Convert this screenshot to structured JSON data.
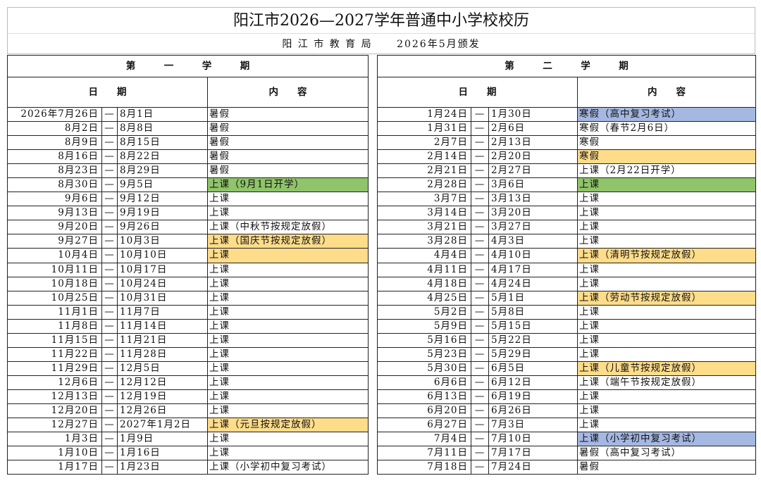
{
  "title": "阳江市2026—2027学年普通中小学校校历",
  "issuer": "阳 江 市 教 育 局",
  "issue_date": "2026年5月颁发",
  "semesters": [
    {
      "heading": "第　　　一　　　学　　　期",
      "date_header": "日　　期",
      "content_header": "内　　容",
      "rows": [
        {
          "start": "2026年7月26日",
          "sep": "—",
          "end": "8月1日",
          "content": "暑假",
          "hl": ""
        },
        {
          "start": "8月2日",
          "sep": "—",
          "end": "8月8日",
          "content": "暑假",
          "hl": ""
        },
        {
          "start": "8月9日",
          "sep": "—",
          "end": "8月15日",
          "content": "暑假",
          "hl": ""
        },
        {
          "start": "8月16日",
          "sep": "—",
          "end": "8月22日",
          "content": "暑假",
          "hl": ""
        },
        {
          "start": "8月23日",
          "sep": "—",
          "end": "8月29日",
          "content": "暑假",
          "hl": ""
        },
        {
          "start": "8月30日",
          "sep": "—",
          "end": "9月5日",
          "content": "上课（9月1日开学）",
          "hl": "green"
        },
        {
          "start": "9月6日",
          "sep": "—",
          "end": "9月12日",
          "content": "上课",
          "hl": ""
        },
        {
          "start": "9月13日",
          "sep": "—",
          "end": "9月19日",
          "content": "上课",
          "hl": ""
        },
        {
          "start": "9月20日",
          "sep": "—",
          "end": "9月26日",
          "content": "上课（中秋节按规定放假）",
          "hl": ""
        },
        {
          "start": "9月27日",
          "sep": "—",
          "end": "10月3日",
          "content": "上课（国庆节按规定放假）",
          "hl": "yellow"
        },
        {
          "start": "10月4日",
          "sep": "—",
          "end": "10月10日",
          "content": "上课",
          "hl": "yellow"
        },
        {
          "start": "10月11日",
          "sep": "—",
          "end": "10月17日",
          "content": "上课",
          "hl": ""
        },
        {
          "start": "10月18日",
          "sep": "—",
          "end": "10月24日",
          "content": "上课",
          "hl": ""
        },
        {
          "start": "10月25日",
          "sep": "—",
          "end": "10月31日",
          "content": "上课",
          "hl": ""
        },
        {
          "start": "11月1日",
          "sep": "—",
          "end": "11月7日",
          "content": "上课",
          "hl": ""
        },
        {
          "start": "11月8日",
          "sep": "—",
          "end": "11月14日",
          "content": "上课",
          "hl": ""
        },
        {
          "start": "11月15日",
          "sep": "—",
          "end": "11月21日",
          "content": "上课",
          "hl": ""
        },
        {
          "start": "11月22日",
          "sep": "—",
          "end": "11月28日",
          "content": "上课",
          "hl": ""
        },
        {
          "start": "11月29日",
          "sep": "—",
          "end": "12月5日",
          "content": "上课",
          "hl": ""
        },
        {
          "start": "12月6日",
          "sep": "—",
          "end": "12月12日",
          "content": "上课",
          "hl": ""
        },
        {
          "start": "12月13日",
          "sep": "—",
          "end": "12月19日",
          "content": "上课",
          "hl": ""
        },
        {
          "start": "12月20日",
          "sep": "—",
          "end": "12月26日",
          "content": "上课",
          "hl": ""
        },
        {
          "start": "12月27日",
          "sep": "—",
          "end": "2027年1月2日",
          "content": "上课（元旦按规定放假）",
          "hl": "yellow"
        },
        {
          "start": "1月3日",
          "sep": "—",
          "end": "1月9日",
          "content": "上课",
          "hl": ""
        },
        {
          "start": "1月10日",
          "sep": "—",
          "end": "1月16日",
          "content": "上课",
          "hl": ""
        },
        {
          "start": "1月17日",
          "sep": "—",
          "end": "1月23日",
          "content": "上课（小学初中复习考试）",
          "hl": ""
        }
      ]
    },
    {
      "heading": "第　　　二　　　学　　　期",
      "date_header": "日　　期",
      "content_header": "内　　容",
      "rows": [
        {
          "start": "1月24日",
          "sep": "—",
          "end": "1月30日",
          "content": "寒假（高中复习考试）",
          "hl": "blue"
        },
        {
          "start": "1月31日",
          "sep": "—",
          "end": "2月6日",
          "content": "寒假（春节2月6日）",
          "hl": ""
        },
        {
          "start": "2月7日",
          "sep": "—",
          "end": "2月13日",
          "content": "寒假",
          "hl": ""
        },
        {
          "start": "2月14日",
          "sep": "—",
          "end": "2月20日",
          "content": "寒假",
          "hl": "yellow"
        },
        {
          "start": "2月21日",
          "sep": "—",
          "end": "2月27日",
          "content": "上课（2月22日开学）",
          "hl": ""
        },
        {
          "start": "2月28日",
          "sep": "—",
          "end": "3月6日",
          "content": "上课",
          "hl": "green"
        },
        {
          "start": "3月7日",
          "sep": "—",
          "end": "3月13日",
          "content": "上课",
          "hl": ""
        },
        {
          "start": "3月14日",
          "sep": "—",
          "end": "3月20日",
          "content": "上课",
          "hl": ""
        },
        {
          "start": "3月21日",
          "sep": "—",
          "end": "3月27日",
          "content": "上课",
          "hl": ""
        },
        {
          "start": "3月28日",
          "sep": "—",
          "end": "4月3日",
          "content": "上课",
          "hl": ""
        },
        {
          "start": "4月4日",
          "sep": "—",
          "end": "4月10日",
          "content": "上课（清明节按规定放假）",
          "hl": "yellow"
        },
        {
          "start": "4月11日",
          "sep": "—",
          "end": "4月17日",
          "content": "上课",
          "hl": ""
        },
        {
          "start": "4月18日",
          "sep": "—",
          "end": "4月24日",
          "content": "上课",
          "hl": ""
        },
        {
          "start": "4月25日",
          "sep": "—",
          "end": "5月1日",
          "content": "上课（劳动节按规定放假）",
          "hl": "yellow"
        },
        {
          "start": "5月2日",
          "sep": "—",
          "end": "5月8日",
          "content": "上课",
          "hl": ""
        },
        {
          "start": "5月9日",
          "sep": "—",
          "end": "5月15日",
          "content": "上课",
          "hl": ""
        },
        {
          "start": "5月16日",
          "sep": "—",
          "end": "5月22日",
          "content": "上课",
          "hl": ""
        },
        {
          "start": "5月23日",
          "sep": "—",
          "end": "5月29日",
          "content": "上课",
          "hl": ""
        },
        {
          "start": "5月30日",
          "sep": "—",
          "end": "6月5日",
          "content": "上课（儿童节按规定放假）",
          "hl": "yellow"
        },
        {
          "start": "6月6日",
          "sep": "—",
          "end": "6月12日",
          "content": "上课（端午节按规定放假）",
          "hl": ""
        },
        {
          "start": "6月13日",
          "sep": "—",
          "end": "6月19日",
          "content": "上课",
          "hl": ""
        },
        {
          "start": "6月20日",
          "sep": "—",
          "end": "6月26日",
          "content": "上课",
          "hl": ""
        },
        {
          "start": "6月27日",
          "sep": "—",
          "end": "7月3日",
          "content": "上课",
          "hl": ""
        },
        {
          "start": "7月4日",
          "sep": "—",
          "end": "7月10日",
          "content": "上课（小学初中复习考试）",
          "hl": "blue"
        },
        {
          "start": "7月11日",
          "sep": "—",
          "end": "7月17日",
          "content": "暑假（高中复习考试）",
          "hl": ""
        },
        {
          "start": "7月18日",
          "sep": "—",
          "end": "7月24日",
          "content": "暑假",
          "hl": ""
        }
      ]
    }
  ],
  "colors": {
    "green": "#8fc46a",
    "yellow": "#fddc8a",
    "blue": "#a5b8e2"
  }
}
